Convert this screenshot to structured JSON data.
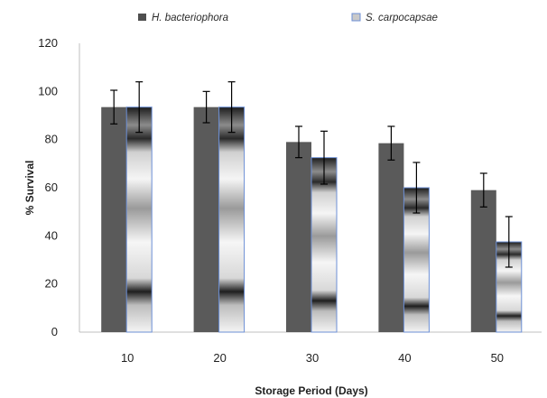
{
  "chart_data": {
    "type": "bar",
    "title": "",
    "xlabel": "Storage Period (Days)",
    "ylabel": "% Survival",
    "categories": [
      "10",
      "20",
      "30",
      "40",
      "50"
    ],
    "ylim": [
      0,
      120
    ],
    "yticks": [
      0,
      20,
      40,
      60,
      80,
      100,
      120
    ],
    "grid": false,
    "legend_position": "top",
    "series": [
      {
        "name": "H. bacteriophora",
        "values": [
          93.5,
          93.5,
          79,
          78.5,
          59
        ],
        "errors": [
          7,
          6.5,
          6.5,
          7,
          7
        ],
        "color": "#5a5a5a",
        "fill": "solid"
      },
      {
        "name": "S. carpocapsae",
        "values": [
          93.5,
          93.5,
          72.5,
          60,
          37.5
        ],
        "errors": [
          10.5,
          10.5,
          11,
          10.5,
          10.5
        ],
        "color": "#6c8fd6",
        "fill": "gradient"
      }
    ]
  }
}
